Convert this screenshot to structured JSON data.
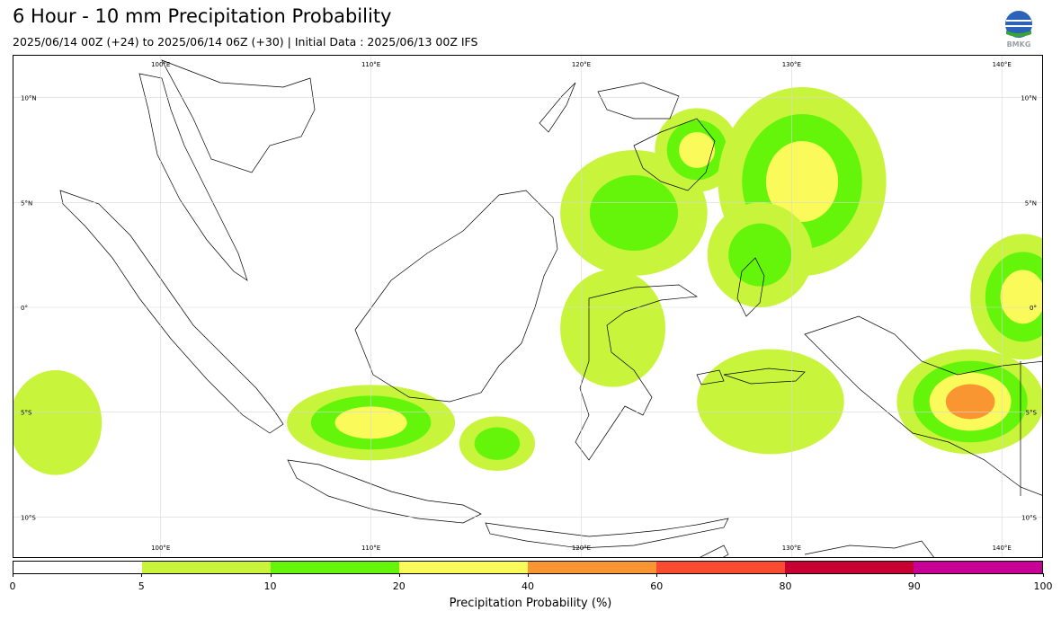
{
  "header": {
    "title": "6 Hour - 10 mm Precipitation Probability",
    "subtitle": "2025/06/14 00Z (+24) to 2025/06/14 06Z (+30) | Initial Data : 2025/06/13 00Z IFS",
    "logo_text": "BMKG"
  },
  "map": {
    "lon_range": [
      93,
      142
    ],
    "lat_range": [
      -12,
      12
    ],
    "lon_labels": [
      {
        "value": 100,
        "text": "100°E"
      },
      {
        "value": 110,
        "text": "110°E"
      },
      {
        "value": 120,
        "text": "120°E"
      },
      {
        "value": 130,
        "text": "130°E"
      },
      {
        "value": 140,
        "text": "140°E"
      }
    ],
    "lat_labels": [
      {
        "value": 10,
        "text": "10°N"
      },
      {
        "value": 5,
        "text": "5°N"
      },
      {
        "value": 0,
        "text": "0°"
      },
      {
        "value": -5,
        "text": "5°S"
      },
      {
        "value": -10,
        "text": "10°S"
      }
    ],
    "precip_areas": [
      {
        "name": "borneo-north-sea",
        "lon": 122.5,
        "lat": 4.5,
        "rx": 3.5,
        "ry": 3.0,
        "level": 2
      },
      {
        "name": "mindanao",
        "lon": 125.5,
        "lat": 7.5,
        "rx": 2.0,
        "ry": 2.0,
        "level": 3
      },
      {
        "name": "philippine-sea",
        "lon": 130.5,
        "lat": 6.0,
        "rx": 4.0,
        "ry": 4.5,
        "level": 3
      },
      {
        "name": "halmahera",
        "lon": 128.5,
        "lat": 2.5,
        "rx": 2.5,
        "ry": 2.5,
        "level": 2
      },
      {
        "name": "java-center",
        "lon": 110.0,
        "lat": -5.5,
        "rx": 4.0,
        "ry": 1.8,
        "level": 3
      },
      {
        "name": "bali-sea",
        "lon": 116.0,
        "lat": -6.5,
        "rx": 1.8,
        "ry": 1.3,
        "level": 2
      },
      {
        "name": "sulawesi",
        "lon": 121.5,
        "lat": -1.0,
        "rx": 2.5,
        "ry": 2.8,
        "level": 1
      },
      {
        "name": "banda-sea",
        "lon": 129.0,
        "lat": -4.5,
        "rx": 3.5,
        "ry": 2.5,
        "level": 1
      },
      {
        "name": "papua",
        "lon": 138.5,
        "lat": -4.5,
        "rx": 3.5,
        "ry": 2.5,
        "level": 4
      },
      {
        "name": "east-equator",
        "lon": 141.0,
        "lat": 0.5,
        "rx": 2.5,
        "ry": 3.0,
        "level": 3
      },
      {
        "name": "indian-ocean",
        "lon": 95.0,
        "lat": -5.5,
        "rx": 2.2,
        "ry": 2.5,
        "level": 1
      }
    ]
  },
  "colorbar": {
    "label": "Precipitation Probability (%)",
    "ticks": [
      "0",
      "5",
      "10",
      "20",
      "40",
      "60",
      "80",
      "90",
      "100"
    ],
    "colors": [
      "#ffffff",
      "#c8f53c",
      "#64f50a",
      "#fafa5a",
      "#fa9632",
      "#fa4b32",
      "#c80032",
      "#c80096"
    ]
  }
}
